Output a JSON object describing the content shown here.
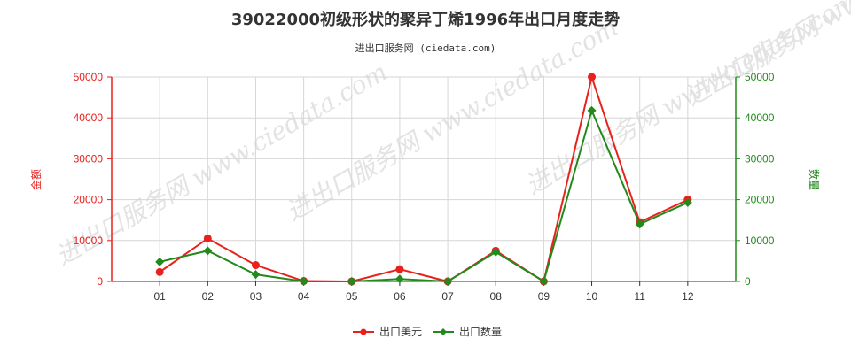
{
  "chart_data": {
    "type": "line",
    "title": "39022000初级形状的聚异丁烯1996年出口月度走势",
    "subtitle": "进出口服务网 (ciedata.com)",
    "watermark": "进出口服务网 www.ciedata.com",
    "categories": [
      "01",
      "02",
      "03",
      "04",
      "05",
      "06",
      "07",
      "08",
      "09",
      "10",
      "11",
      "12"
    ],
    "y_left": {
      "label": "金额",
      "min": 0,
      "max": 50000,
      "ticks": [
        "0",
        "10000",
        "20000",
        "30000",
        "40000",
        "50000"
      ],
      "color": "#e8211c"
    },
    "y_right": {
      "label": "数量",
      "min": 0,
      "max": 50000,
      "ticks": [
        "0",
        "10000",
        "20000",
        "30000",
        "40000",
        "50000"
      ],
      "color": "#22891c"
    },
    "grid": true,
    "legend_position": "bottom-center",
    "series": [
      {
        "name": "出口美元",
        "axis": "left",
        "color": "#e8211c",
        "marker": "circle",
        "values": [
          2300,
          10500,
          4000,
          100,
          0,
          3000,
          0,
          7500,
          0,
          50000,
          14500,
          20000
        ]
      },
      {
        "name": "出口数量",
        "axis": "right",
        "color": "#22891c",
        "marker": "diamond",
        "values": [
          4800,
          7500,
          1700,
          0,
          0,
          600,
          0,
          7200,
          0,
          41800,
          14000,
          19300
        ]
      }
    ]
  }
}
